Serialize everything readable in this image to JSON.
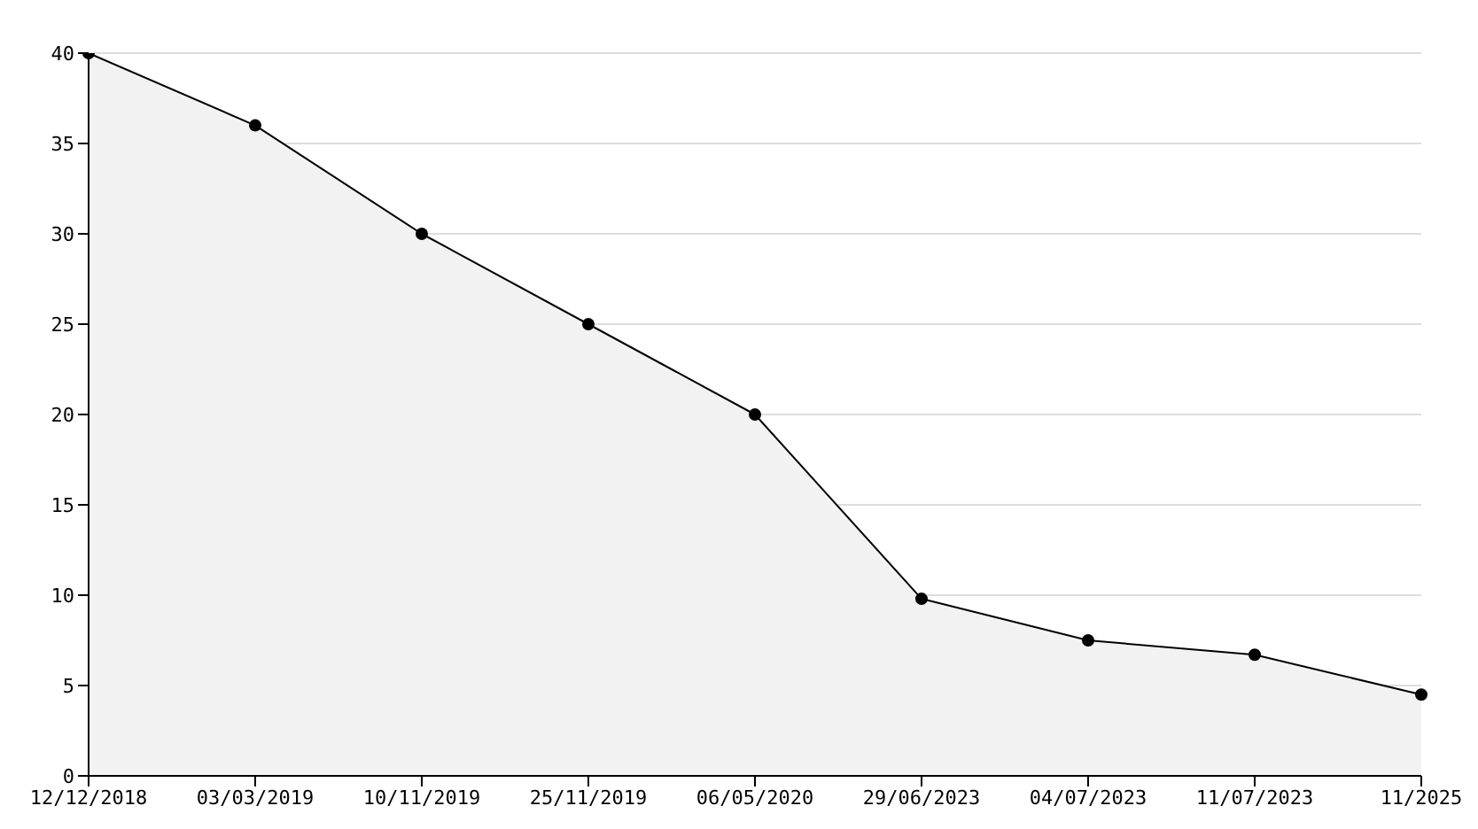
{
  "chart_data": {
    "type": "area",
    "categories": [
      "12/12/2018",
      "03/03/2019",
      "10/11/2019",
      "25/11/2019",
      "06/05/2020",
      "29/06/2023",
      "04/07/2023",
      "11/07/2023",
      "11/2025"
    ],
    "series": [
      {
        "color": "#000000",
        "values": [
          40,
          36,
          30,
          25,
          20,
          9.8,
          7.5,
          6.7,
          4.5
        ]
      }
    ],
    "ylim": [
      0,
      40
    ],
    "yticks": [
      0,
      5,
      10,
      15,
      20,
      25,
      30,
      35,
      40
    ],
    "grid": "y",
    "marker": "circle",
    "line_style": "solid"
  }
}
